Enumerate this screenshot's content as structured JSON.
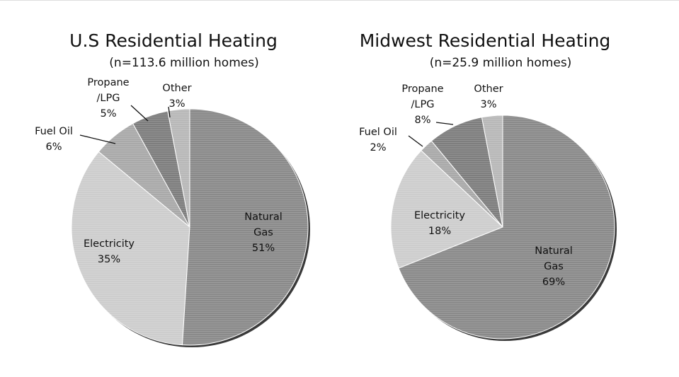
{
  "chart_data": [
    {
      "type": "pie",
      "title": "U.S Residential Heating",
      "subtitle": "(n=113.6 million homes)",
      "slices": [
        {
          "name": "Natural Gas",
          "label_lines": [
            "Natural",
            "Gas"
          ],
          "value": 51,
          "value_label": "51%",
          "color": "#8a8a8a"
        },
        {
          "name": "Electricity",
          "label_lines": [
            "Electricity"
          ],
          "value": 35,
          "value_label": "35%",
          "color": "#cdcdcd"
        },
        {
          "name": "Fuel Oil",
          "label_lines": [
            "Fuel Oil"
          ],
          "value": 6,
          "value_label": "6%",
          "color": "#a9a9a9"
        },
        {
          "name": "Propane/LPG",
          "label_lines": [
            "Propane",
            "/LPG"
          ],
          "value": 5,
          "value_label": "5%",
          "color": "#7e7e7e"
        },
        {
          "name": "Other",
          "label_lines": [
            "Other"
          ],
          "value": 3,
          "value_label": "3%",
          "color": "#b8b8b8"
        }
      ]
    },
    {
      "type": "pie",
      "title": "Midwest Residential Heating",
      "subtitle": "(n=25.9 million homes)",
      "slices": [
        {
          "name": "Natural Gas",
          "label_lines": [
            "Natural",
            "Gas"
          ],
          "value": 69,
          "value_label": "69%",
          "color": "#8a8a8a"
        },
        {
          "name": "Electricity",
          "label_lines": [
            "Electricity"
          ],
          "value": 18,
          "value_label": "18%",
          "color": "#cdcdcd"
        },
        {
          "name": "Fuel Oil",
          "label_lines": [
            "Fuel Oil"
          ],
          "value": 2,
          "value_label": "2%",
          "color": "#a9a9a9"
        },
        {
          "name": "Propane/LPG",
          "label_lines": [
            "Propane",
            "/LPG"
          ],
          "value": 8,
          "value_label": "8%",
          "color": "#7e7e7e"
        },
        {
          "name": "Other",
          "label_lines": [
            "Other"
          ],
          "value": 3,
          "value_label": "3%",
          "color": "#b8b8b8"
        }
      ]
    }
  ]
}
